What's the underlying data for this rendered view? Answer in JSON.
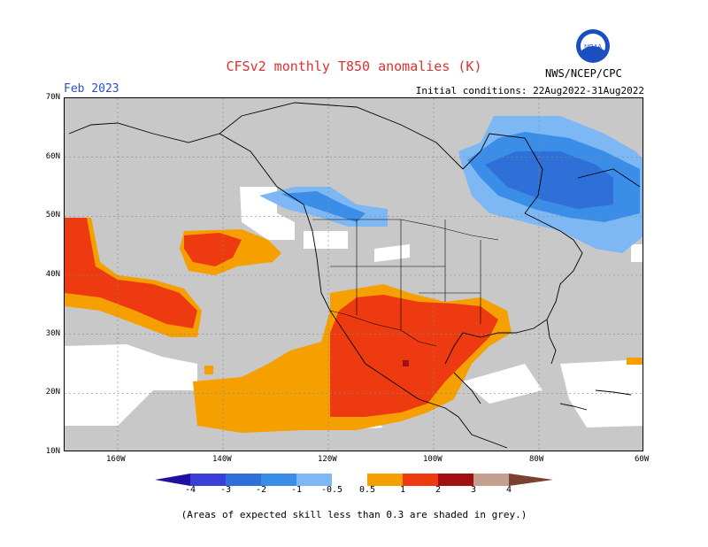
{
  "title": "CFSv2 monthly T850 anomalies (K)",
  "month": "Feb 2023",
  "initial_conditions": "Initial conditions: 22Aug2022-31Aug2022",
  "agency": "NWS/NCEP/CPC",
  "logo_icon": "noaa-logo-icon",
  "footnote": "(Areas of expected skill less than 0.3 are shaded in grey.)",
  "lat_labels": [
    "70N",
    "60N",
    "50N",
    "40N",
    "30N",
    "20N",
    "10N"
  ],
  "lon_labels": [
    "160W",
    "140W",
    "120W",
    "100W",
    "80W",
    "60W"
  ],
  "colorbar": {
    "labels": [
      "-4",
      "-3",
      "-2",
      "-1",
      "-0.5",
      "0.5",
      "1",
      "2",
      "3",
      "4"
    ],
    "colors": [
      "#2010a0",
      "#3a3fd6",
      "#2e6fd8",
      "#3a8ee8",
      "#7db8f5",
      "#ffffff",
      "#f5a000",
      "#ee3a10",
      "#a01010",
      "#c4a090",
      "#7a4030"
    ]
  },
  "colors": {
    "skill_grey": "#c8c8c8",
    "ocean_land_white": "#ffffff",
    "warm_orange": "#f5a000",
    "warm_red": "#ee3a10",
    "cool_light_blue": "#7db8f5",
    "cool_blue": "#3a8ee8",
    "cool_dark_blue": "#2e6fd8"
  }
}
